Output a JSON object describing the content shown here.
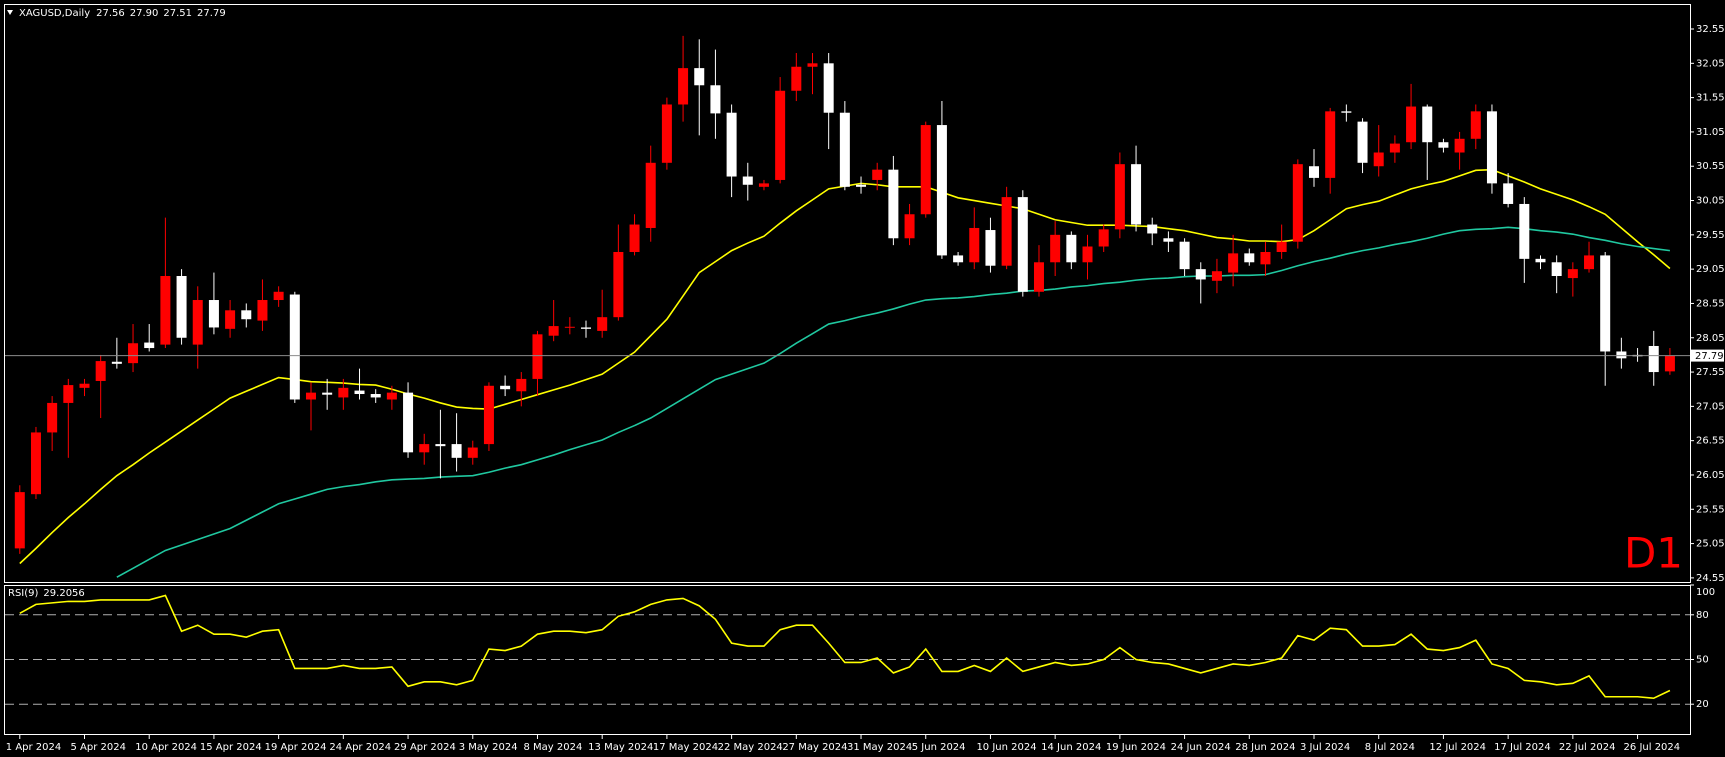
{
  "chart_data": [
    {
      "type": "candlestick",
      "title": "XAGUSD,Daily",
      "timeframe": "D1",
      "background": "#000000",
      "categories": [
        "1 Apr 2024",
        null,
        null,
        null,
        "5 Apr 2024",
        null,
        null,
        null,
        "10 Apr 2024",
        null,
        null,
        null,
        "15 Apr 2024",
        null,
        null,
        null,
        "19 Apr 2024",
        null,
        null,
        null,
        "24 Apr 2024",
        null,
        null,
        null,
        "29 Apr 2024",
        null,
        null,
        null,
        "3 May 2024",
        null,
        null,
        null,
        "8 May 2024",
        null,
        null,
        null,
        "13 May 2024",
        null,
        null,
        null,
        "17 May 2024",
        null,
        null,
        null,
        "22 May 2024",
        null,
        null,
        null,
        "27 May 2024",
        null,
        null,
        null,
        "31 May 2024",
        null,
        null,
        null,
        "5 Jun 2024",
        null,
        null,
        null,
        "10 Jun 2024",
        null,
        null,
        null,
        "14 Jun 2024",
        null,
        null,
        null,
        "19 Jun 2024",
        null,
        null,
        null,
        "24 Jun 2024",
        null,
        null,
        null,
        "28 Jun 2024",
        null,
        null,
        null,
        "3 Jul 2024",
        null,
        null,
        null,
        "8 Jul 2024",
        null,
        null,
        null,
        "12 Jul 2024",
        null,
        null,
        null,
        "17 Jul 2024",
        null,
        null,
        null,
        "22 Jul 2024",
        null,
        null,
        null,
        "26 Jul 2024",
        null,
        null
      ],
      "ohlc": {
        "up_color": "#ff0000",
        "down_color": "#ffffff",
        "open": [
          24.98,
          25.77,
          26.67,
          27.1,
          27.32,
          27.42,
          27.7,
          27.68,
          27.98,
          27.95,
          28.95,
          27.95,
          28.6,
          28.18,
          28.45,
          28.3,
          28.6,
          28.68,
          27.15,
          27.25,
          27.18,
          27.28,
          27.23,
          27.15,
          27.25,
          26.38,
          26.5,
          26.5,
          26.3,
          26.5,
          27.35,
          27.27,
          27.45,
          28.08,
          28.2,
          28.2,
          28.15,
          28.35,
          29.3,
          29.65,
          30.6,
          31.45,
          31.98,
          31.73,
          31.33,
          30.4,
          30.25,
          30.35,
          31.65,
          32.0,
          32.05,
          31.33,
          30.28,
          30.35,
          30.5,
          29.5,
          29.85,
          31.15,
          29.25,
          29.15,
          29.62,
          29.1,
          30.1,
          28.72,
          29.15,
          29.55,
          29.15,
          29.38,
          29.63,
          30.58,
          29.7,
          29.5,
          29.45,
          29.05,
          28.88,
          29.0,
          29.28,
          29.12,
          29.3,
          29.45,
          30.55,
          30.38,
          31.35,
          31.2,
          30.55,
          30.75,
          30.9,
          31.42,
          30.9,
          30.75,
          30.95,
          31.35,
          30.3,
          30.0,
          29.2,
          29.15,
          28.92,
          29.05,
          29.25,
          27.85,
          27.8,
          27.93,
          27.56
        ],
        "high": [
          25.9,
          26.75,
          27.2,
          27.45,
          27.45,
          27.8,
          28.05,
          28.25,
          28.25,
          29.8,
          29.05,
          28.8,
          29.0,
          28.6,
          28.55,
          28.9,
          28.8,
          28.72,
          27.4,
          27.45,
          27.45,
          27.6,
          27.3,
          27.35,
          27.4,
          26.65,
          27.0,
          26.95,
          26.55,
          27.4,
          27.5,
          27.55,
          28.15,
          28.6,
          28.35,
          28.3,
          28.75,
          29.7,
          29.85,
          30.85,
          31.55,
          32.45,
          32.4,
          32.25,
          31.45,
          30.6,
          30.35,
          31.85,
          32.2,
          32.2,
          32.2,
          31.5,
          30.4,
          30.6,
          30.7,
          30.0,
          31.2,
          31.5,
          29.3,
          29.95,
          29.8,
          30.25,
          30.2,
          29.4,
          29.75,
          29.6,
          29.55,
          29.7,
          30.75,
          30.85,
          29.8,
          29.6,
          29.5,
          29.15,
          29.2,
          29.55,
          29.35,
          29.45,
          29.7,
          30.65,
          30.8,
          31.4,
          31.45,
          31.25,
          31.15,
          31.0,
          31.75,
          31.45,
          30.95,
          31.05,
          31.45,
          31.45,
          30.45,
          30.1,
          29.25,
          29.25,
          29.15,
          29.45,
          29.3,
          28.05,
          27.9,
          28.15,
          27.9
        ],
        "low": [
          24.9,
          25.7,
          26.4,
          26.3,
          27.2,
          26.88,
          27.6,
          27.55,
          27.85,
          27.9,
          27.95,
          27.6,
          28.1,
          28.05,
          28.2,
          28.15,
          28.5,
          27.1,
          26.7,
          27.0,
          27.0,
          27.15,
          27.1,
          27.0,
          26.3,
          26.2,
          26.0,
          26.1,
          26.2,
          26.4,
          27.2,
          27.05,
          27.2,
          28.0,
          28.1,
          28.05,
          28.05,
          28.3,
          29.25,
          29.45,
          30.5,
          31.2,
          31.0,
          30.95,
          30.1,
          30.05,
          30.2,
          30.3,
          31.5,
          31.6,
          30.8,
          30.2,
          30.15,
          30.2,
          29.4,
          29.4,
          29.8,
          29.2,
          29.1,
          29.05,
          29.0,
          29.05,
          28.65,
          28.65,
          28.95,
          29.05,
          28.9,
          29.3,
          29.5,
          29.6,
          29.4,
          29.3,
          28.95,
          28.55,
          28.7,
          28.8,
          29.1,
          28.95,
          29.2,
          29.35,
          30.25,
          30.15,
          31.2,
          30.45,
          30.4,
          30.6,
          30.8,
          30.35,
          30.75,
          30.5,
          30.8,
          30.15,
          29.95,
          28.85,
          29.05,
          28.7,
          28.65,
          29.0,
          27.35,
          27.6,
          27.7,
          27.35,
          27.51
        ],
        "close": [
          25.8,
          26.67,
          27.1,
          27.36,
          27.38,
          27.71,
          27.67,
          27.97,
          27.9,
          28.95,
          28.05,
          28.6,
          28.2,
          28.45,
          28.32,
          28.6,
          28.72,
          27.15,
          27.25,
          27.22,
          27.32,
          27.23,
          27.18,
          27.25,
          26.38,
          26.5,
          26.47,
          26.3,
          26.45,
          27.35,
          27.3,
          27.45,
          28.1,
          28.22,
          28.21,
          28.18,
          28.35,
          29.3,
          29.7,
          30.6,
          31.45,
          31.98,
          31.73,
          31.32,
          30.4,
          30.28,
          30.3,
          31.65,
          32.0,
          32.05,
          31.33,
          30.25,
          30.25,
          30.5,
          29.5,
          29.85,
          31.15,
          29.25,
          29.15,
          29.65,
          29.1,
          30.1,
          28.72,
          29.15,
          29.55,
          29.15,
          29.38,
          29.63,
          30.58,
          29.7,
          29.57,
          29.45,
          29.05,
          28.9,
          29.02,
          29.28,
          29.15,
          29.3,
          29.45,
          30.58,
          30.38,
          31.35,
          31.33,
          30.6,
          30.75,
          30.88,
          31.42,
          30.9,
          30.82,
          30.95,
          31.35,
          30.3,
          30.0,
          29.2,
          29.15,
          28.95,
          29.05,
          29.25,
          27.85,
          27.75,
          27.78,
          27.55,
          27.79
        ]
      },
      "last_bar_labels": [
        "27.56",
        "27.90",
        "27.51",
        "27.79"
      ],
      "lines": [
        {
          "color": "#ffff00",
          "values": [
            24.76,
            24.98,
            25.21,
            25.43,
            25.63,
            25.84,
            26.04,
            26.2,
            26.37,
            26.53,
            26.69,
            26.85,
            27.01,
            27.17,
            27.27,
            27.37,
            27.47,
            27.44,
            27.41,
            27.4,
            27.39,
            27.37,
            27.36,
            27.3,
            27.23,
            27.17,
            27.1,
            27.04,
            27.02,
            27.01,
            27.08,
            27.15,
            27.22,
            27.29,
            27.36,
            27.44,
            27.52,
            27.68,
            27.84,
            28.08,
            28.32,
            28.66,
            29.0,
            29.16,
            29.32,
            29.43,
            29.53,
            29.72,
            29.9,
            30.06,
            30.22,
            30.26,
            30.3,
            30.28,
            30.25,
            30.25,
            30.25,
            30.17,
            30.09,
            30.05,
            30.01,
            29.97,
            29.93,
            29.85,
            29.77,
            29.73,
            29.69,
            29.69,
            29.69,
            29.68,
            29.67,
            29.64,
            29.61,
            29.56,
            29.51,
            29.49,
            29.46,
            29.46,
            29.45,
            29.48,
            29.61,
            29.77,
            29.93,
            29.99,
            30.04,
            30.13,
            30.22,
            30.28,
            30.33,
            30.41,
            30.49,
            30.5,
            30.41,
            30.32,
            30.22,
            30.14,
            30.06,
            29.96,
            29.85,
            29.65,
            29.45,
            29.26,
            29.06
          ]
        },
        {
          "color": "#20c8a0",
          "values": [
            null,
            null,
            null,
            null,
            null,
            null,
            24.56,
            24.69,
            24.82,
            24.95,
            25.03,
            25.11,
            25.19,
            25.27,
            25.39,
            25.51,
            25.63,
            25.7,
            25.77,
            25.84,
            25.88,
            25.91,
            25.95,
            25.98,
            25.99,
            26.0,
            26.02,
            26.03,
            26.04,
            26.09,
            26.15,
            26.2,
            26.27,
            26.34,
            26.42,
            26.49,
            26.56,
            26.67,
            26.77,
            26.88,
            27.02,
            27.16,
            27.3,
            27.44,
            27.52,
            27.6,
            27.68,
            27.82,
            27.97,
            28.11,
            28.25,
            28.3,
            28.36,
            28.41,
            28.47,
            28.54,
            28.6,
            28.62,
            28.63,
            28.65,
            28.68,
            28.7,
            28.73,
            28.74,
            28.76,
            28.79,
            28.81,
            28.84,
            28.86,
            28.89,
            28.91,
            28.92,
            28.94,
            28.95,
            28.95,
            28.96,
            28.96,
            28.97,
            29.03,
            29.1,
            29.16,
            29.21,
            29.27,
            29.32,
            29.36,
            29.41,
            29.45,
            29.5,
            29.56,
            29.61,
            29.63,
            29.64,
            29.66,
            29.64,
            29.61,
            29.59,
            29.56,
            29.51,
            29.47,
            29.42,
            29.38,
            29.35,
            29.32
          ]
        }
      ],
      "ylim": [
        24.49,
        32.9
      ],
      "yticks": [
        24.55,
        25.05,
        25.55,
        26.05,
        26.55,
        27.05,
        27.55,
        28.05,
        28.55,
        29.05,
        29.55,
        30.05,
        30.55,
        31.05,
        31.55,
        32.05,
        32.55
      ]
    },
    {
      "type": "line",
      "title": "RSI(9)",
      "color": "#ffff00",
      "values": [
        81,
        87,
        88,
        89,
        89,
        90,
        90,
        90,
        90,
        93,
        69,
        73,
        67,
        67,
        65,
        69,
        70,
        44,
        44,
        44,
        46,
        44,
        44,
        45,
        32,
        35,
        35,
        33,
        36,
        57,
        56,
        59,
        67,
        69,
        69,
        68,
        70,
        79,
        82,
        87,
        90,
        91,
        86,
        77,
        61,
        59,
        59,
        70,
        73,
        73,
        61,
        48,
        48,
        51,
        41,
        45,
        57,
        42,
        42,
        46,
        42,
        51,
        42,
        45,
        48,
        46,
        47,
        50,
        58,
        50,
        48,
        47,
        44,
        41,
        44,
        47,
        46,
        48,
        51,
        66,
        63,
        71,
        70,
        59,
        59,
        60,
        67,
        57,
        56,
        58,
        63,
        47,
        44,
        36,
        35,
        33,
        34,
        39,
        25,
        25,
        25,
        24,
        29.2056
      ],
      "ylim": [
        0,
        100
      ],
      "yticks": [
        20,
        50,
        80,
        100
      ]
    }
  ]
}
